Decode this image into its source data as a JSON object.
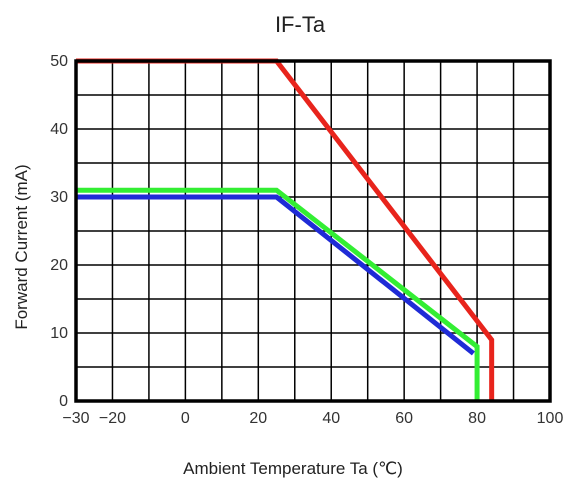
{
  "chart_data": {
    "type": "line",
    "title": "IF-Ta",
    "xlabel": "Ambient Temperature Ta (℃)",
    "ylabel": "Forward Current (mA)",
    "xlim": [
      -30,
      100
    ],
    "ylim": [
      0,
      50
    ],
    "x_ticks": [
      -30,
      -20,
      0,
      20,
      40,
      60,
      80,
      100
    ],
    "x_tick_labels": [
      "−30",
      "−20",
      "0",
      "20",
      "40",
      "60",
      "80",
      "100"
    ],
    "y_ticks": [
      0,
      10,
      20,
      30,
      40,
      50
    ],
    "y_tick_labels": [
      "0",
      "10",
      "20",
      "30",
      "40",
      "50"
    ],
    "x_grid_step": 10,
    "y_grid_step": 5,
    "grid": true,
    "series": [
      {
        "color": "#e8241c",
        "points": [
          [
            -30,
            50
          ],
          [
            25,
            50
          ],
          [
            84,
            9
          ],
          [
            84,
            0
          ]
        ]
      },
      {
        "color": "#33ee33",
        "points": [
          [
            -30,
            31
          ],
          [
            25,
            31
          ],
          [
            80,
            8
          ],
          [
            80,
            0
          ]
        ]
      },
      {
        "color": "#1f2bd6",
        "points": [
          [
            -30,
            30
          ],
          [
            25,
            30
          ],
          [
            79,
            7
          ]
        ]
      }
    ]
  }
}
